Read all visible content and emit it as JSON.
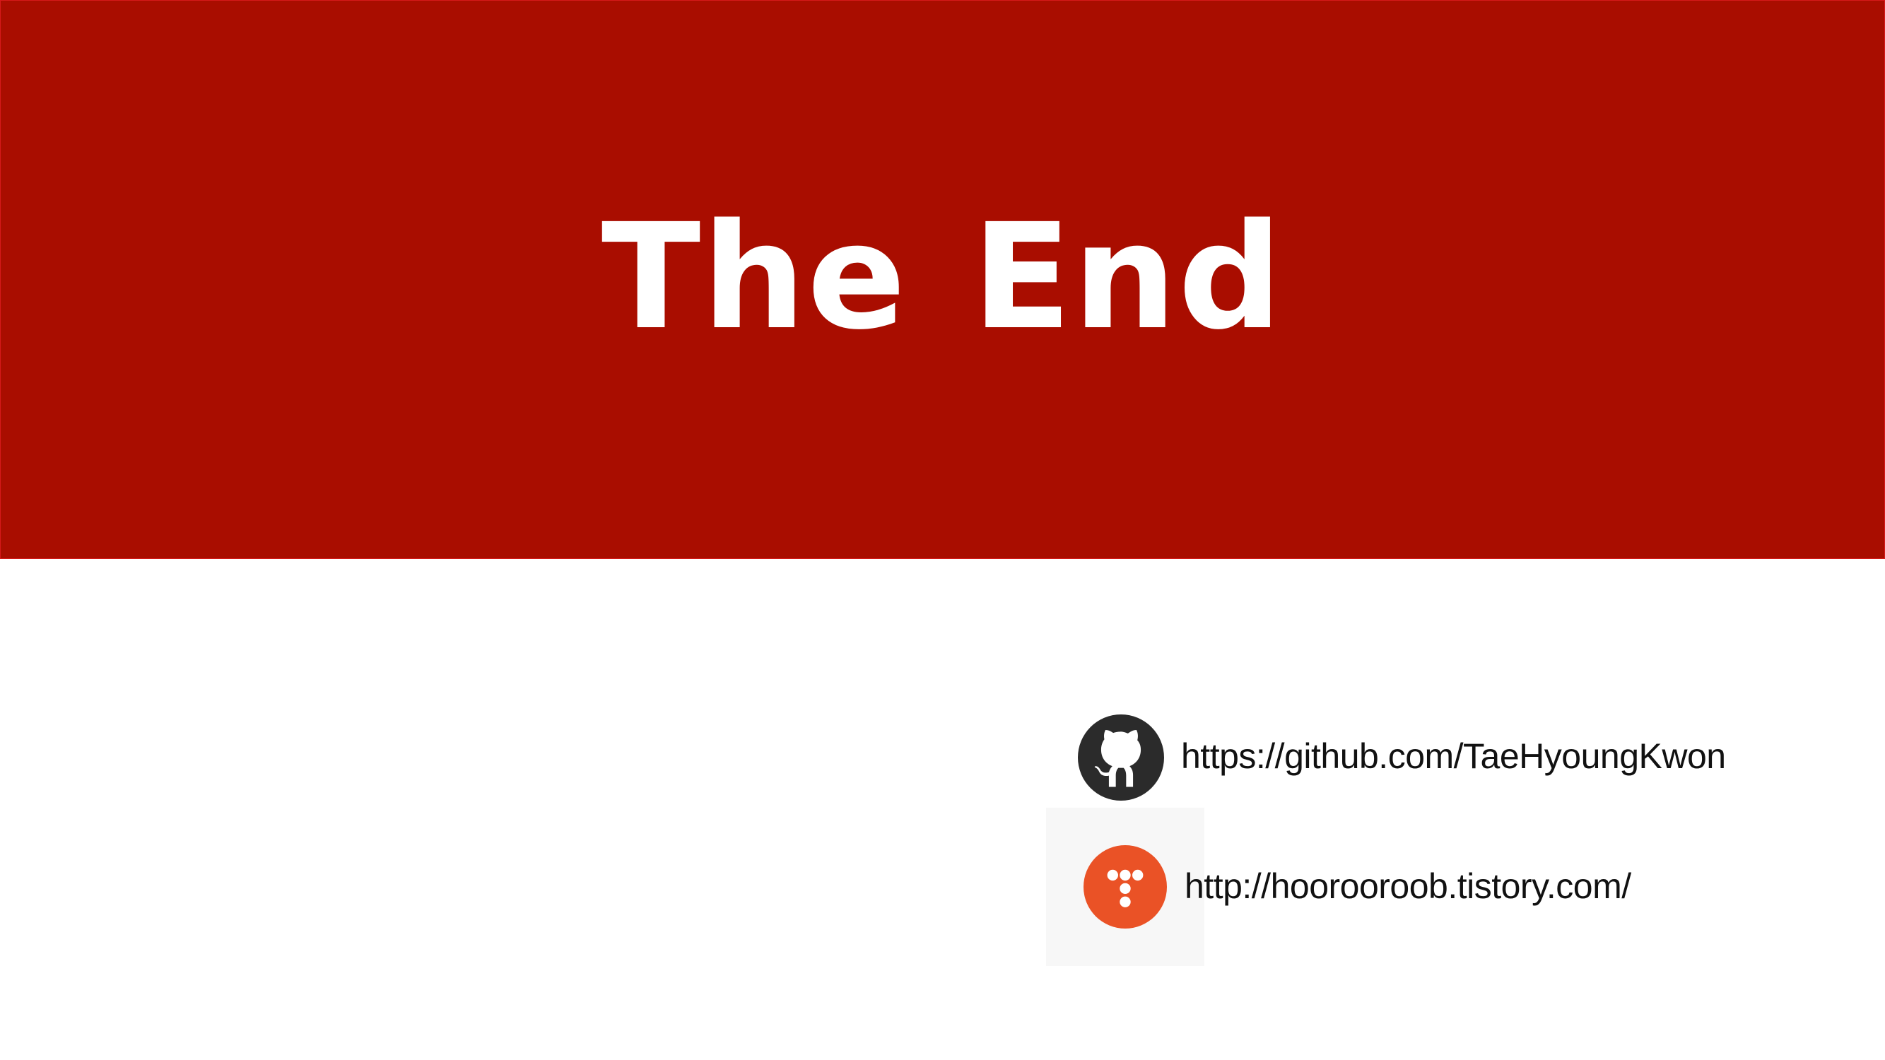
{
  "slide": {
    "title": "The End"
  },
  "links": {
    "github": {
      "url_text": "https://github.com/TaeHyoungKwon",
      "icon": "github-octocat-icon"
    },
    "tistory": {
      "url_text": "http://hoorooroob.tistory.com/",
      "icon": "tistory-logo-icon"
    }
  },
  "colors": {
    "banner_background": "#a90d00",
    "banner_border": "#d61a1a",
    "title_text": "#ffffff",
    "github_icon": "#2b2b2b",
    "tistory_icon": "#ea5226",
    "link_text": "#111111"
  }
}
